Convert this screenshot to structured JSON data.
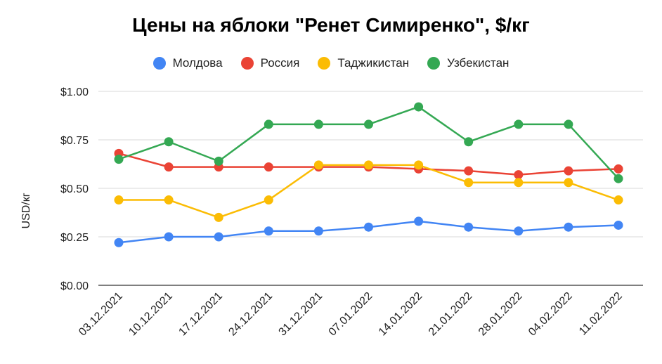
{
  "chart_data": {
    "type": "line",
    "title": "Цены на яблоки \"Ренет Симиренко\", $/кг",
    "ylabel": "USD/кг",
    "xlabel": "",
    "ylim": [
      0,
      1.0
    ],
    "yticks": [
      "$0.00",
      "$0.25",
      "$0.50",
      "$0.75",
      "$1.00"
    ],
    "ytick_values": [
      0,
      0.25,
      0.5,
      0.75,
      1.0
    ],
    "grid": true,
    "legend_position": "top",
    "categories": [
      "03.12.2021",
      "10.12.2021",
      "17.12.2021",
      "24.12.2021",
      "31.12.2021",
      "07.01.2022",
      "14.01.2022",
      "21.01.2022",
      "28.01.2022",
      "04.02.2022",
      "11.02.2022"
    ],
    "series": [
      {
        "name": "Молдова",
        "color": "#4285f4",
        "values": [
          0.22,
          0.25,
          0.25,
          0.28,
          0.28,
          0.3,
          0.33,
          0.3,
          0.28,
          0.3,
          0.31
        ]
      },
      {
        "name": "Россия",
        "color": "#ea4335",
        "values": [
          0.68,
          0.61,
          0.61,
          0.61,
          0.61,
          0.61,
          0.6,
          0.59,
          0.57,
          0.59,
          0.6
        ]
      },
      {
        "name": "Таджикистан",
        "color": "#fbbc04",
        "values": [
          0.44,
          0.44,
          0.35,
          0.44,
          0.62,
          0.62,
          0.62,
          0.53,
          0.53,
          0.53,
          0.44
        ]
      },
      {
        "name": "Узбекистан",
        "color": "#34a853",
        "values": [
          0.65,
          0.74,
          0.64,
          0.83,
          0.83,
          0.83,
          0.92,
          0.74,
          0.83,
          0.83,
          0.55
        ]
      }
    ]
  }
}
